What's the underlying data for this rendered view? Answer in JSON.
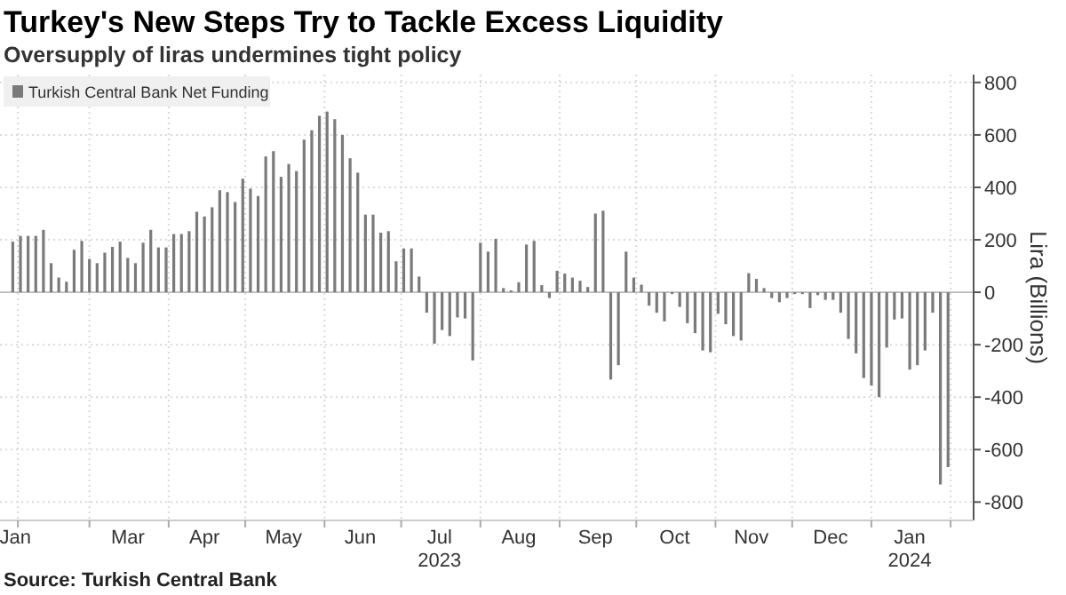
{
  "chart_data": {
    "type": "bar",
    "title": "Turkey's New Steps Try to Tackle Excess Liquidity",
    "subtitle": "Oversupply of liras undermines tight policy",
    "ylabel": "Lira (Billions)",
    "annotations": [
      "Source: Turkish Central Bank"
    ],
    "x": [
      "2023-01-30",
      "2023-02-02",
      "2023-02-05",
      "2023-02-08",
      "2023-02-11",
      "2023-02-14",
      "2023-02-17",
      "2023-02-20",
      "2023-02-23",
      "2023-02-26",
      "2023-03-01",
      "2023-03-04",
      "2023-03-07",
      "2023-03-10",
      "2023-03-13",
      "2023-03-16",
      "2023-03-19",
      "2023-03-22",
      "2023-03-25",
      "2023-03-28",
      "2023-03-31",
      "2023-04-03",
      "2023-04-06",
      "2023-04-09",
      "2023-04-12",
      "2023-04-15",
      "2023-04-18",
      "2023-04-21",
      "2023-04-24",
      "2023-04-27",
      "2023-04-30",
      "2023-05-03",
      "2023-05-06",
      "2023-05-09",
      "2023-05-12",
      "2023-05-15",
      "2023-05-18",
      "2023-05-21",
      "2023-05-24",
      "2023-05-27",
      "2023-05-30",
      "2023-06-02",
      "2023-06-05",
      "2023-06-08",
      "2023-06-11",
      "2023-06-14",
      "2023-06-17",
      "2023-06-20",
      "2023-06-23",
      "2023-06-26",
      "2023-06-29",
      "2023-07-02",
      "2023-07-05",
      "2023-07-08",
      "2023-07-11",
      "2023-07-14",
      "2023-07-17",
      "2023-07-20",
      "2023-07-23",
      "2023-07-26",
      "2023-07-29",
      "2023-08-01",
      "2023-08-04",
      "2023-08-07",
      "2023-08-10",
      "2023-08-13",
      "2023-08-16",
      "2023-08-19",
      "2023-08-22",
      "2023-08-25",
      "2023-08-28",
      "2023-08-31",
      "2023-09-03",
      "2023-09-06",
      "2023-09-09",
      "2023-09-12",
      "2023-09-15",
      "2023-09-18",
      "2023-09-21",
      "2023-09-24",
      "2023-09-27",
      "2023-09-30",
      "2023-10-03",
      "2023-10-06",
      "2023-10-09",
      "2023-10-12",
      "2023-10-15",
      "2023-10-18",
      "2023-10-21",
      "2023-10-24",
      "2023-10-27",
      "2023-10-30",
      "2023-11-02",
      "2023-11-05",
      "2023-11-08",
      "2023-11-11",
      "2023-11-14",
      "2023-11-17",
      "2023-11-20",
      "2023-11-23",
      "2023-11-26",
      "2023-11-29",
      "2023-12-02",
      "2023-12-05",
      "2023-12-08",
      "2023-12-11",
      "2023-12-14",
      "2023-12-17",
      "2023-12-20",
      "2023-12-23",
      "2023-12-26",
      "2023-12-29",
      "2024-01-01",
      "2024-01-04",
      "2024-01-07",
      "2024-01-10",
      "2024-01-13",
      "2024-01-16",
      "2024-01-19",
      "2024-01-22",
      "2024-01-25",
      "2024-01-28",
      "2024-01-31"
    ],
    "series": [
      {
        "name": "Turkish Central Bank Net Funding",
        "color": "#7a7a7a",
        "values": [
          193,
          215,
          215,
          215,
          238,
          111,
          56,
          40,
          162,
          196,
          127,
          111,
          151,
          173,
          193,
          131,
          111,
          189,
          238,
          171,
          171,
          222,
          222,
          233,
          307,
          289,
          324,
          389,
          382,
          344,
          433,
          395,
          367,
          518,
          538,
          440,
          489,
          462,
          582,
          618,
          673,
          689,
          660,
          600,
          511,
          456,
          296,
          296,
          227,
          233,
          118,
          167,
          167,
          60,
          -78,
          -196,
          -144,
          -167,
          -96,
          -100,
          -260,
          189,
          155,
          204,
          16,
          7,
          38,
          182,
          196,
          27,
          -22,
          82,
          71,
          56,
          44,
          20,
          300,
          311,
          -333,
          -278,
          155,
          56,
          29,
          -51,
          -78,
          -111,
          -7,
          -56,
          -118,
          -156,
          -222,
          -229,
          -82,
          -122,
          -167,
          -184,
          73,
          51,
          16,
          -22,
          -38,
          -22,
          -7,
          -7,
          -60,
          -11,
          -29,
          -29,
          -78,
          -178,
          -233,
          -327,
          -356,
          -400,
          -211,
          -104,
          -100,
          -295,
          -278,
          -222,
          -78,
          -733,
          -667
        ]
      }
    ],
    "xlim": [
      "2023-01-25",
      "2024-02-10"
    ],
    "xticks": [
      {
        "value": "2023-01-31",
        "label": "Jan"
      },
      {
        "value": "2023-02-01",
        "label": null
      },
      {
        "value": "2023-03-01",
        "label": null
      },
      {
        "value": "2023-03-16",
        "label": "Mar"
      },
      {
        "value": "2023-04-01",
        "label": null
      },
      {
        "value": "2023-04-15",
        "label": "Apr"
      },
      {
        "value": "2023-05-01",
        "label": null
      },
      {
        "value": "2023-05-16",
        "label": "May"
      },
      {
        "value": "2023-06-01",
        "label": null
      },
      {
        "value": "2023-06-15",
        "label": "Jun"
      },
      {
        "value": "2023-07-01",
        "label": null
      },
      {
        "value": "2023-07-16",
        "label": "Jul\n2023"
      },
      {
        "value": "2023-08-01",
        "label": null
      },
      {
        "value": "2023-08-16",
        "label": "Aug"
      },
      {
        "value": "2023-09-01",
        "label": null
      },
      {
        "value": "2023-09-15",
        "label": "Sep"
      },
      {
        "value": "2023-10-01",
        "label": null
      },
      {
        "value": "2023-10-16",
        "label": "Oct"
      },
      {
        "value": "2023-11-01",
        "label": null
      },
      {
        "value": "2023-11-15",
        "label": "Nov"
      },
      {
        "value": "2023-12-01",
        "label": null
      },
      {
        "value": "2023-12-16",
        "label": "Dec"
      },
      {
        "value": "2024-01-01",
        "label": null
      },
      {
        "value": "2024-01-16",
        "label": "Jan\n2024"
      },
      {
        "value": "2024-02-01",
        "label": null
      }
    ],
    "ylim": [
      -870,
      830
    ],
    "yticks": [
      -800,
      -600,
      -400,
      -200,
      0,
      200,
      400,
      600,
      800
    ],
    "grid": true,
    "legend": "top left"
  }
}
